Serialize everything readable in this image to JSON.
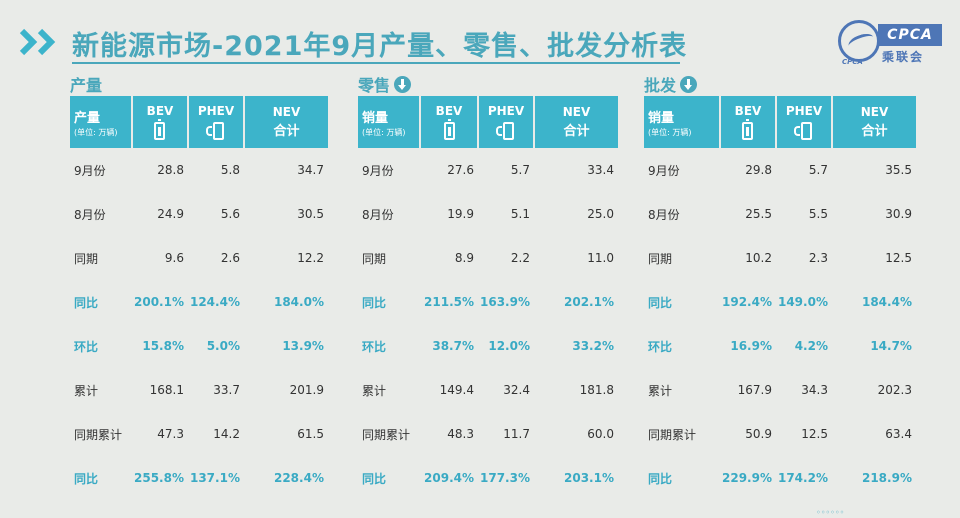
{
  "header": {
    "title": "新能源市场-2021年9月产量、零售、批发分析表",
    "logo_text": "CPCA",
    "logo_sub": "乘联会",
    "logo_small": "CPCA"
  },
  "colors": {
    "accent": "#3cb4cb",
    "title": "#4aa7bb",
    "logo": "#4e76b6"
  },
  "sections": [
    {
      "title": "产量",
      "row_head": "产量",
      "unit": "(单位: 万辆)",
      "columns": {
        "bev": "BEV",
        "phev": "PHEV",
        "nev": "NEV",
        "nev_sub": "合计"
      },
      "rows": [
        {
          "label": "9月份",
          "bev": "28.8",
          "phev": "5.8",
          "nev": "34.7"
        },
        {
          "label": "8月份",
          "bev": "24.9",
          "phev": "5.6",
          "nev": "30.5"
        },
        {
          "label": "同期",
          "bev": "9.6",
          "phev": "2.6",
          "nev": "12.2"
        },
        {
          "label": "同比",
          "bev": "200.1%",
          "phev": "124.4%",
          "nev": "184.0%"
        },
        {
          "label": "环比",
          "bev": "15.8%",
          "phev": "5.0%",
          "nev": "13.9%"
        },
        {
          "label": "累计",
          "bev": "168.1",
          "phev": "33.7",
          "nev": "201.9"
        },
        {
          "label": "同期累计",
          "bev": "47.3",
          "phev": "14.2",
          "nev": "61.5"
        },
        {
          "label": "同比",
          "bev": "255.8%",
          "phev": "137.1%",
          "nev": "228.4%"
        }
      ]
    },
    {
      "title": "零售",
      "row_head": "销量",
      "unit": "(单位: 万辆)",
      "columns": {
        "bev": "BEV",
        "phev": "PHEV",
        "nev": "NEV",
        "nev_sub": "合计"
      },
      "rows": [
        {
          "label": "9月份",
          "bev": "27.6",
          "phev": "5.7",
          "nev": "33.4"
        },
        {
          "label": "8月份",
          "bev": "19.9",
          "phev": "5.1",
          "nev": "25.0"
        },
        {
          "label": "同期",
          "bev": "8.9",
          "phev": "2.2",
          "nev": "11.0"
        },
        {
          "label": "同比",
          "bev": "211.5%",
          "phev": "163.9%",
          "nev": "202.1%"
        },
        {
          "label": "环比",
          "bev": "38.7%",
          "phev": "12.0%",
          "nev": "33.2%"
        },
        {
          "label": "累计",
          "bev": "149.4",
          "phev": "32.4",
          "nev": "181.8"
        },
        {
          "label": "同期累计",
          "bev": "48.3",
          "phev": "11.7",
          "nev": "60.0"
        },
        {
          "label": "同比",
          "bev": "209.4%",
          "phev": "177.3%",
          "nev": "203.1%"
        }
      ]
    },
    {
      "title": "批发",
      "row_head": "销量",
      "unit": "(单位: 万辆)",
      "columns": {
        "bev": "BEV",
        "phev": "PHEV",
        "nev": "NEV",
        "nev_sub": "合计"
      },
      "rows": [
        {
          "label": "9月份",
          "bev": "29.8",
          "phev": "5.7",
          "nev": "35.5"
        },
        {
          "label": "8月份",
          "bev": "25.5",
          "phev": "5.5",
          "nev": "30.9"
        },
        {
          "label": "同期",
          "bev": "10.2",
          "phev": "2.3",
          "nev": "12.5"
        },
        {
          "label": "同比",
          "bev": "192.4%",
          "phev": "149.0%",
          "nev": "184.4%"
        },
        {
          "label": "环比",
          "bev": "16.9%",
          "phev": "4.2%",
          "nev": "14.7%"
        },
        {
          "label": "累计",
          "bev": "167.9",
          "phev": "34.3",
          "nev": "202.3"
        },
        {
          "label": "同期累计",
          "bev": "50.9",
          "phev": "12.5",
          "nev": "63.4"
        },
        {
          "label": "同比",
          "bev": "229.9%",
          "phev": "174.2%",
          "nev": "218.9%"
        }
      ]
    }
  ]
}
